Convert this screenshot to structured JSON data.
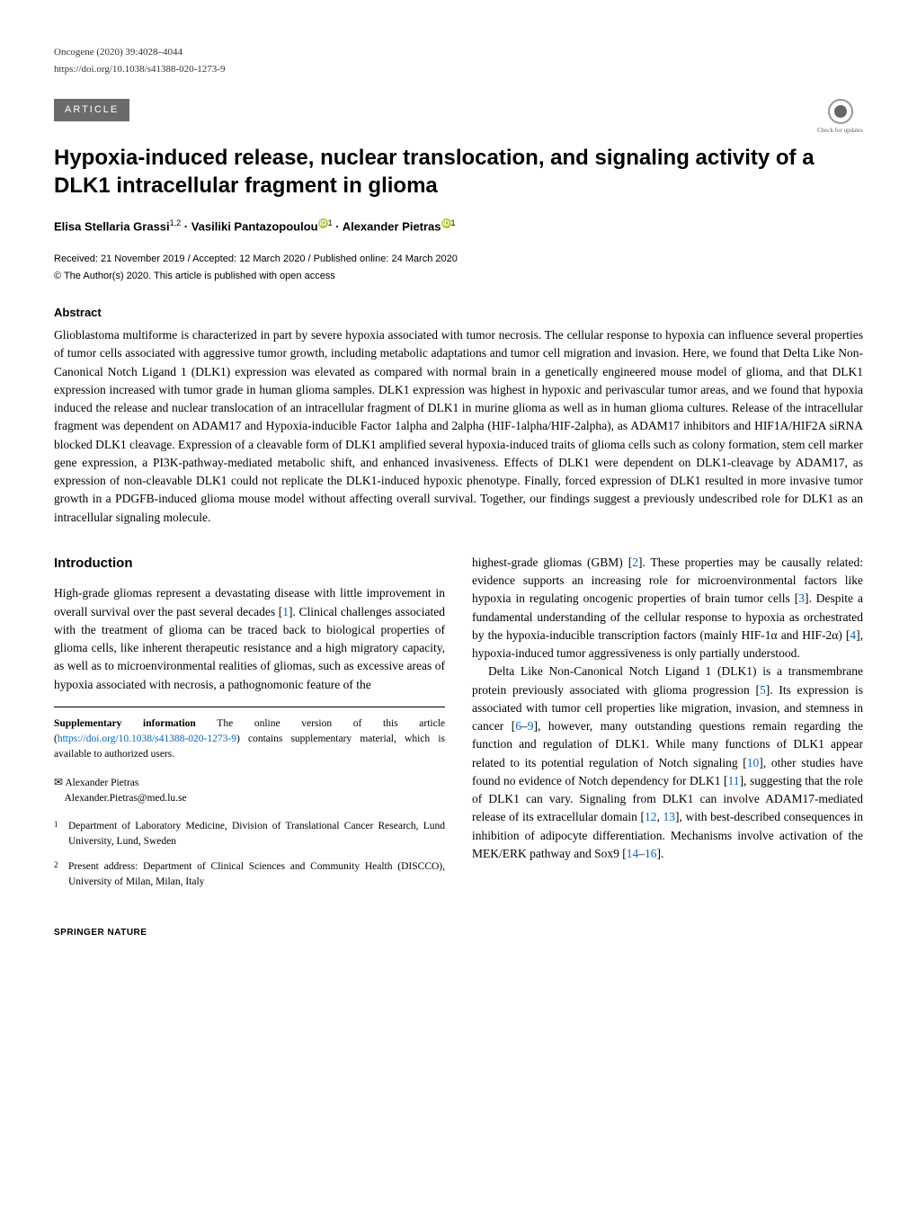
{
  "meta": {
    "journal_line": "Oncogene (2020) 39:4028–4044",
    "doi": "https://doi.org/10.1038/s41388-020-1273-9",
    "article_badge": "ARTICLE",
    "check_updates": "Check for updates"
  },
  "title": "Hypoxia-induced release, nuclear translocation, and signaling activity of a DLK1 intracellular fragment in glioma",
  "authors": {
    "a1_name": "Elisa Stellaria Grassi",
    "a1_sup": "1,2",
    "sep1": " · ",
    "a2_name": "Vasiliki Pantazopoulou",
    "a2_sup": "1",
    "sep2": " · ",
    "a3_name": "Alexander Pietras",
    "a3_sup": "1"
  },
  "dates": "Received: 21 November 2019 / Accepted: 12 March 2020 / Published online: 24 March 2020",
  "copyright": "© The Author(s) 2020. This article is published with open access",
  "abstract": {
    "heading": "Abstract",
    "text": "Glioblastoma multiforme is characterized in part by severe hypoxia associated with tumor necrosis. The cellular response to hypoxia can influence several properties of tumor cells associated with aggressive tumor growth, including metabolic adaptations and tumor cell migration and invasion. Here, we found that Delta Like Non-Canonical Notch Ligand 1 (DLK1) expression was elevated as compared with normal brain in a genetically engineered mouse model of glioma, and that DLK1 expression increased with tumor grade in human glioma samples. DLK1 expression was highest in hypoxic and perivascular tumor areas, and we found that hypoxia induced the release and nuclear translocation of an intracellular fragment of DLK1 in murine glioma as well as in human glioma cultures. Release of the intracellular fragment was dependent on ADAM17 and Hypoxia-inducible Factor 1alpha and 2alpha (HIF-1alpha/HIF-2alpha), as ADAM17 inhibitors and HIF1A/HIF2A siRNA blocked DLK1 cleavage. Expression of a cleavable form of DLK1 amplified several hypoxia-induced traits of glioma cells such as colony formation, stem cell marker gene expression, a PI3K-pathway-mediated metabolic shift, and enhanced invasiveness. Effects of DLK1 were dependent on DLK1-cleavage by ADAM17, as expression of non-cleavable DLK1 could not replicate the DLK1-induced hypoxic phenotype. Finally, forced expression of DLK1 resulted in more invasive tumor growth in a PDGFB-induced glioma mouse model without affecting overall survival. Together, our findings suggest a previously undescribed role for DLK1 as an intracellular signaling molecule."
  },
  "introduction": {
    "heading": "Introduction",
    "left_p1_a": "High-grade gliomas represent a devastating disease with little improvement in overall survival over the past several decades [",
    "left_ref1": "1",
    "left_p1_b": "]. Clinical challenges associated with the treatment of glioma can be traced back to biological properties of glioma cells, like inherent therapeutic resistance and a high migratory capacity, as well as to microenvironmental realities of gliomas, such as excessive areas of hypoxia associated with necrosis, a pathognomonic feature of the",
    "right_p1_a": "highest-grade gliomas (GBM) [",
    "right_ref2": "2",
    "right_p1_b": "]. These properties may be causally related: evidence supports an increasing role for microenvironmental factors like hypoxia in regulating oncogenic properties of brain tumor cells [",
    "right_ref3": "3",
    "right_p1_c": "]. Despite a fundamental understanding of the cellular response to hypoxia as orchestrated by the hypoxia-inducible transcription factors (mainly HIF-1α and HIF-2α) [",
    "right_ref4": "4",
    "right_p1_d": "], hypoxia-induced tumor aggressiveness is only partially understood.",
    "right_p2_a": "Delta Like Non-Canonical Notch Ligand 1 (DLK1) is a transmembrane protein previously associated with glioma progression [",
    "right_ref5": "5",
    "right_p2_b": "]. Its expression is associated with tumor cell properties like migration, invasion, and stemness in cancer [",
    "right_ref6": "6",
    "right_p2_c": "–",
    "right_ref9": "9",
    "right_p2_d": "], however, many outstanding questions remain regarding the function and regulation of DLK1. While many functions of DLK1 appear related to its potential regulation of Notch signaling [",
    "right_ref10": "10",
    "right_p2_e": "], other studies have found no evidence of Notch dependency for DLK1 [",
    "right_ref11": "11",
    "right_p2_f": "], suggesting that the role of DLK1 can vary. Signaling from DLK1 can involve ADAM17-mediated release of its extracellular domain [",
    "right_ref12": "12",
    "right_p2_g": ", ",
    "right_ref13": "13",
    "right_p2_h": "], with best-described consequences in inhibition of adipocyte differentiation. Mechanisms involve activation of the MEK/ERK pathway and Sox9 [",
    "right_ref14": "14",
    "right_p2_i": "–",
    "right_ref16": "16",
    "right_p2_j": "]."
  },
  "supp": {
    "label": "Supplementary information",
    "text_a": " The online version of this article (",
    "link": "https://doi.org/10.1038/s41388-020-1273-9",
    "text_b": ") contains supplementary material, which is available to authorized users."
  },
  "corresponding": {
    "name": "Alexander Pietras",
    "email": "Alexander.Pietras@med.lu.se"
  },
  "affiliations": {
    "aff1_sup": "1",
    "aff1": "Department of Laboratory Medicine, Division of Translational Cancer Research, Lund University, Lund, Sweden",
    "aff2_sup": "2",
    "aff2": "Present address: Department of Clinical Sciences and Community Health (DISCCO), University of Milan, Milan, Italy"
  },
  "footer": "SPRINGER NATURE"
}
